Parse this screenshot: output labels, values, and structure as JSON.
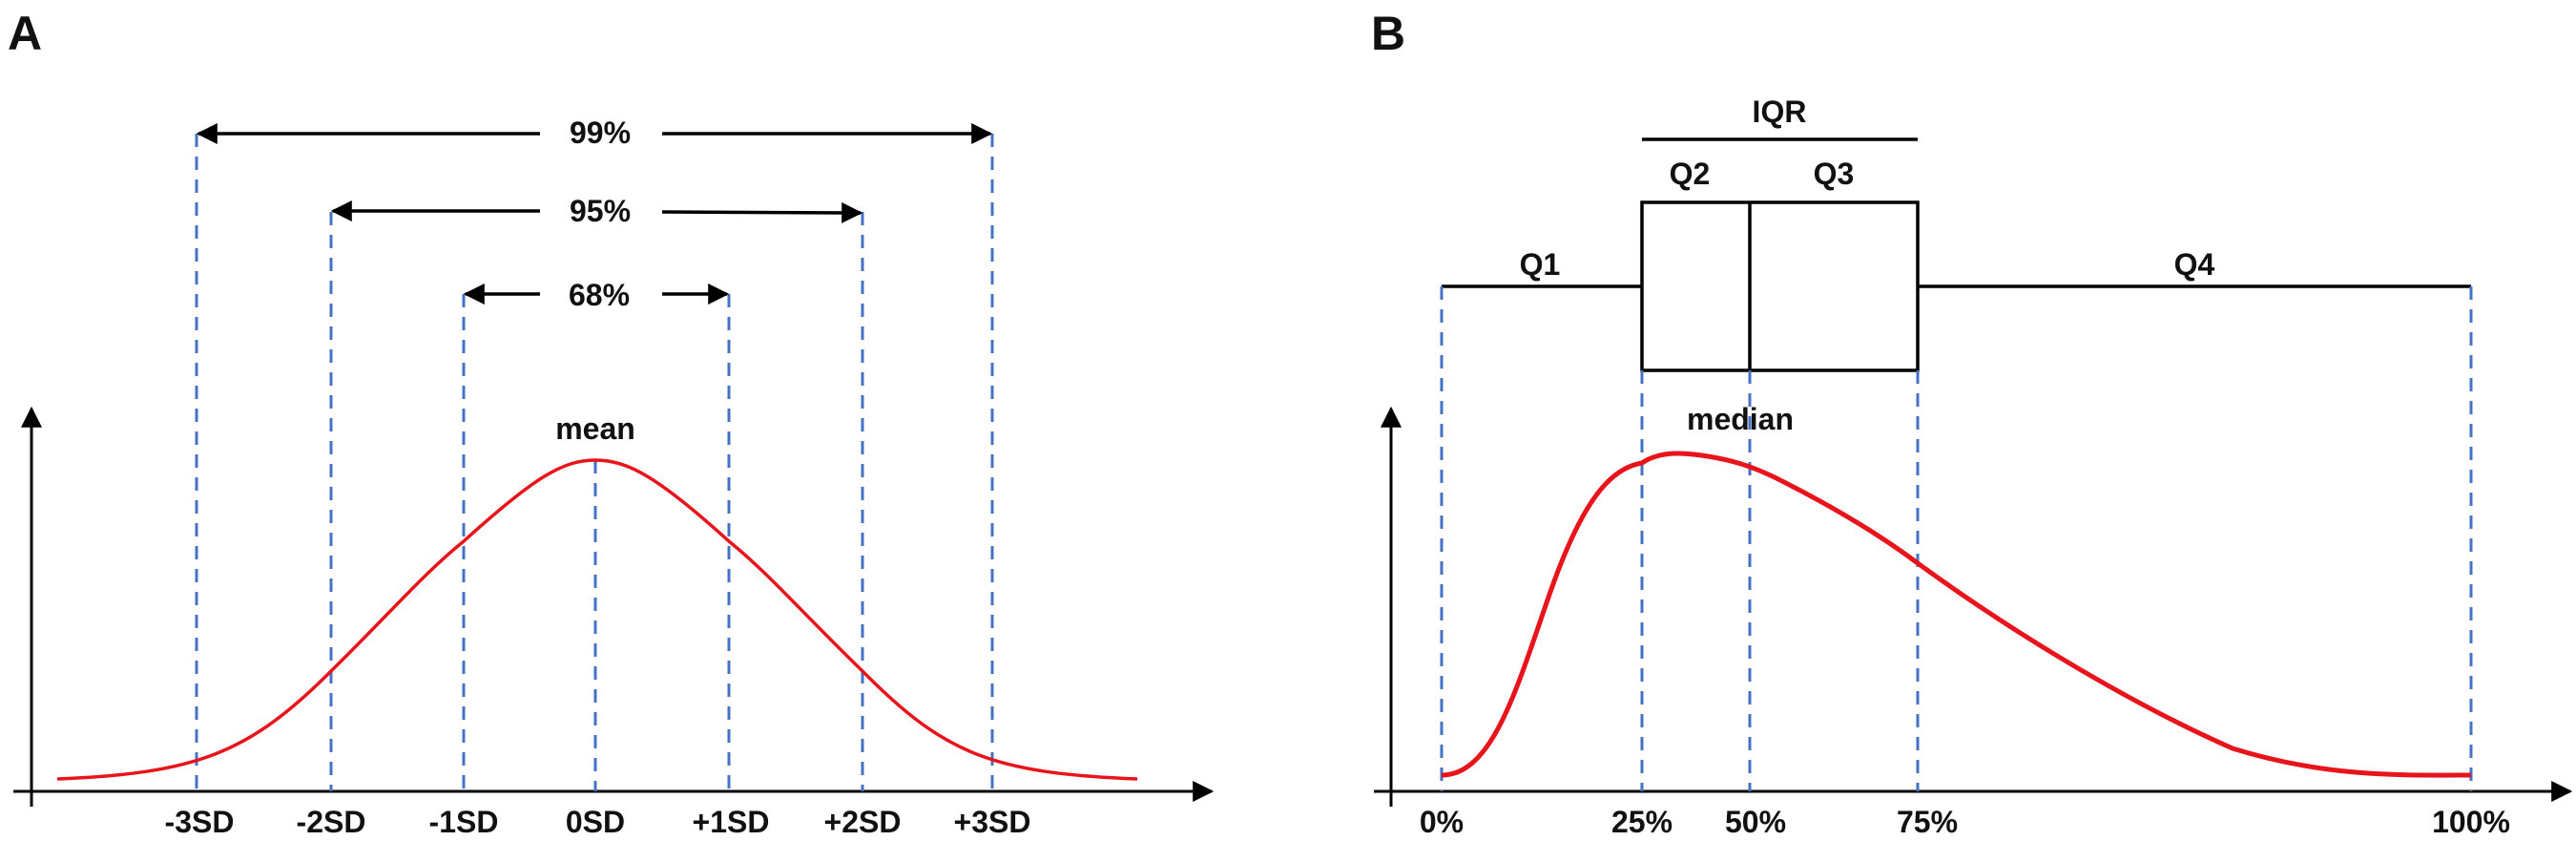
{
  "panel_a": {
    "letter": "A",
    "mean_label": "mean",
    "range_labels": {
      "r99": "99%",
      "r95": "95%",
      "r68": "68%"
    },
    "ticks": [
      "-3SD",
      "-2SD",
      "-1SD",
      "0SD",
      "+1SD",
      "+2SD",
      "+3SD"
    ]
  },
  "panel_b": {
    "letter": "B",
    "iqr_label": "IQR",
    "quartiles": {
      "q1": "Q1",
      "q2": "Q2",
      "q3": "Q3",
      "q4": "Q4"
    },
    "median_label": "median",
    "ticks": [
      "0%",
      "25%",
      "50%",
      "75%",
      "100%"
    ]
  },
  "colors": {
    "curve": "#E8141B",
    "guide_lines": "#4472C4",
    "axes": "#000000"
  }
}
